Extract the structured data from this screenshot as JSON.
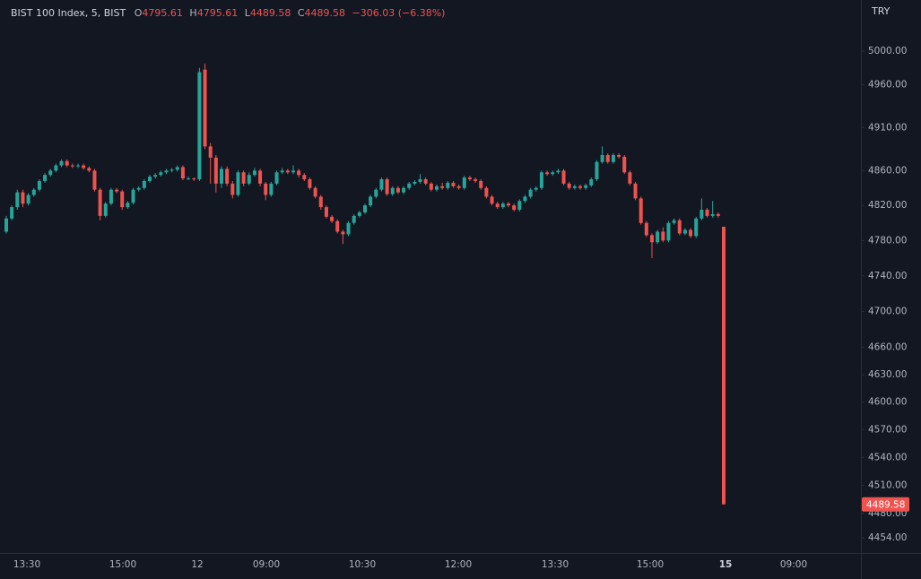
{
  "chart_data": {
    "type": "candlestick",
    "title": "BIST 100 Index, 5, BIST",
    "legend_letters": [
      "O",
      "H",
      "L",
      "C"
    ],
    "change": "−306.03 (−6.38%)",
    "currency": "TRY",
    "up_color": "#26a69a",
    "down_color": "#ef5350",
    "log_scale": true,
    "ylim": [
      4438,
      5061
    ],
    "yticks": [
      {
        "value": 5000,
        "label": "5000.00"
      },
      {
        "value": 4960,
        "label": "4960.00"
      },
      {
        "value": 4910,
        "label": "4910.00"
      },
      {
        "value": 4860,
        "label": "4860.00"
      },
      {
        "value": 4820,
        "label": "4820.00"
      },
      {
        "value": 4780,
        "label": "4780.00"
      },
      {
        "value": 4740,
        "label": "4740.00"
      },
      {
        "value": 4700,
        "label": "4700.00"
      },
      {
        "value": 4660,
        "label": "4660.00"
      },
      {
        "value": 4630,
        "label": "4630.00"
      },
      {
        "value": 4600,
        "label": "4600.00"
      },
      {
        "value": 4570,
        "label": "4570.00"
      },
      {
        "value": 4540,
        "label": "4540.00"
      },
      {
        "value": 4510,
        "label": "4510.00"
      },
      {
        "value": 4480,
        "label": "4480.00"
      },
      {
        "value": 4454,
        "label": "4454.00"
      }
    ],
    "xtick_labels": [
      "13:30",
      "15:00",
      "12",
      "09:00",
      "10:30",
      "12:00",
      "13:30",
      "15:00",
      "15",
      "09:00"
    ],
    "ohlc": [
      [
        4790,
        4808,
        4788,
        4805
      ],
      [
        4805,
        4820,
        4803,
        4818
      ],
      [
        4818,
        4838,
        4815,
        4835
      ],
      [
        4835,
        4838,
        4818,
        4822
      ],
      [
        4822,
        4834,
        4820,
        4832
      ],
      [
        4832,
        4840,
        4830,
        4838
      ],
      [
        4838,
        4850,
        4836,
        4848
      ],
      [
        4848,
        4857,
        4846,
        4855
      ],
      [
        4855,
        4862,
        4853,
        4860
      ],
      [
        4860,
        4868,
        4858,
        4866
      ],
      [
        4866,
        4873,
        4864,
        4871
      ],
      [
        4871,
        4873,
        4864,
        4866
      ],
      [
        4866,
        4868,
        4863,
        4865
      ],
      [
        4865,
        4868,
        4863,
        4866
      ],
      [
        4866,
        4868,
        4861,
        4863
      ],
      [
        4863,
        4865,
        4858,
        4860
      ],
      [
        4860,
        4862,
        4836,
        4838
      ],
      [
        4838,
        4840,
        4803,
        4808
      ],
      [
        4808,
        4824,
        4806,
        4822
      ],
      [
        4822,
        4840,
        4820,
        4838
      ],
      [
        4838,
        4840,
        4834,
        4836
      ],
      [
        4836,
        4838,
        4815,
        4818
      ],
      [
        4818,
        4825,
        4816,
        4823
      ],
      [
        4823,
        4840,
        4821,
        4838
      ],
      [
        4838,
        4842,
        4836,
        4840
      ],
      [
        4840,
        4850,
        4838,
        4848
      ],
      [
        4848,
        4855,
        4846,
        4853
      ],
      [
        4853,
        4857,
        4851,
        4855
      ],
      [
        4855,
        4860,
        4853,
        4858
      ],
      [
        4858,
        4862,
        4856,
        4860
      ],
      [
        4860,
        4863,
        4858,
        4861
      ],
      [
        4861,
        4866,
        4859,
        4864
      ],
      [
        4864,
        4866,
        4849,
        4851
      ],
      [
        4851,
        4853,
        4849,
        4851
      ],
      [
        4851,
        4852,
        4848,
        4850
      ],
      [
        4850,
        4980,
        4848,
        4975
      ],
      [
        4978,
        4985,
        4885,
        4888
      ],
      [
        4888,
        4892,
        4845,
        4875
      ],
      [
        4875,
        4878,
        4835,
        4845
      ],
      [
        4845,
        4865,
        4840,
        4862
      ],
      [
        4862,
        4865,
        4842,
        4845
      ],
      [
        4845,
        4848,
        4828,
        4832
      ],
      [
        4832,
        4860,
        4830,
        4858
      ],
      [
        4858,
        4860,
        4842,
        4845
      ],
      [
        4845,
        4858,
        4843,
        4855
      ],
      [
        4855,
        4863,
        4853,
        4860
      ],
      [
        4860,
        4862,
        4842,
        4845
      ],
      [
        4845,
        4847,
        4826,
        4832
      ],
      [
        4832,
        4847,
        4830,
        4845
      ],
      [
        4845,
        4860,
        4843,
        4858
      ],
      [
        4858,
        4863,
        4856,
        4860
      ],
      [
        4860,
        4862,
        4856,
        4858
      ],
      [
        4858,
        4866,
        4856,
        4860
      ],
      [
        4860,
        4862,
        4852,
        4855
      ],
      [
        4855,
        4857,
        4848,
        4850
      ],
      [
        4850,
        4852,
        4838,
        4840
      ],
      [
        4840,
        4842,
        4828,
        4830
      ],
      [
        4830,
        4832,
        4815,
        4818
      ],
      [
        4818,
        4820,
        4805,
        4807
      ],
      [
        4807,
        4809,
        4800,
        4802
      ],
      [
        4802,
        4804,
        4788,
        4790
      ],
      [
        4790,
        4792,
        4776,
        4787
      ],
      [
        4787,
        4802,
        4785,
        4800
      ],
      [
        4800,
        4810,
        4798,
        4808
      ],
      [
        4808,
        4814,
        4806,
        4812
      ],
      [
        4812,
        4822,
        4810,
        4820
      ],
      [
        4820,
        4832,
        4818,
        4830
      ],
      [
        4830,
        4840,
        4828,
        4838
      ],
      [
        4838,
        4852,
        4836,
        4850
      ],
      [
        4850,
        4852,
        4831,
        4833
      ],
      [
        4833,
        4842,
        4831,
        4840
      ],
      [
        4840,
        4842,
        4833,
        4835
      ],
      [
        4835,
        4842,
        4833,
        4840
      ],
      [
        4840,
        4847,
        4838,
        4845
      ],
      [
        4845,
        4849,
        4843,
        4847
      ],
      [
        4847,
        4856,
        4845,
        4850
      ],
      [
        4850,
        4852,
        4843,
        4845
      ],
      [
        4845,
        4847,
        4836,
        4838
      ],
      [
        4838,
        4844,
        4836,
        4842
      ],
      [
        4842,
        4846,
        4838,
        4840
      ],
      [
        4840,
        4848,
        4838,
        4846
      ],
      [
        4846,
        4848,
        4840,
        4842
      ],
      [
        4842,
        4844,
        4838,
        4840
      ],
      [
        4840,
        4854,
        4838,
        4852
      ],
      [
        4852,
        4854,
        4848,
        4850
      ],
      [
        4850,
        4852,
        4846,
        4848
      ],
      [
        4848,
        4850,
        4838,
        4840
      ],
      [
        4840,
        4842,
        4828,
        4830
      ],
      [
        4830,
        4832,
        4820,
        4822
      ],
      [
        4822,
        4824,
        4816,
        4818
      ],
      [
        4818,
        4824,
        4816,
        4822
      ],
      [
        4822,
        4824,
        4818,
        4820
      ],
      [
        4820,
        4822,
        4813,
        4815
      ],
      [
        4815,
        4827,
        4813,
        4825
      ],
      [
        4825,
        4832,
        4823,
        4830
      ],
      [
        4830,
        4840,
        4828,
        4838
      ],
      [
        4838,
        4842,
        4836,
        4840
      ],
      [
        4840,
        4860,
        4838,
        4858
      ],
      [
        4858,
        4860,
        4854,
        4856
      ],
      [
        4856,
        4860,
        4854,
        4858
      ],
      [
        4858,
        4862,
        4856,
        4860
      ],
      [
        4860,
        4862,
        4843,
        4845
      ],
      [
        4845,
        4847,
        4838,
        4840
      ],
      [
        4840,
        4844,
        4838,
        4842
      ],
      [
        4842,
        4844,
        4838,
        4840
      ],
      [
        4840,
        4845,
        4838,
        4843
      ],
      [
        4843,
        4852,
        4841,
        4850
      ],
      [
        4850,
        4872,
        4848,
        4870
      ],
      [
        4870,
        4888,
        4868,
        4878
      ],
      [
        4878,
        4880,
        4868,
        4870
      ],
      [
        4870,
        4880,
        4868,
        4878
      ],
      [
        4878,
        4880,
        4874,
        4876
      ],
      [
        4876,
        4878,
        4856,
        4858
      ],
      [
        4858,
        4860,
        4843,
        4845
      ],
      [
        4845,
        4847,
        4826,
        4828
      ],
      [
        4828,
        4830,
        4798,
        4800
      ],
      [
        4800,
        4802,
        4784,
        4786
      ],
      [
        4786,
        4788,
        4760,
        4778
      ],
      [
        4778,
        4792,
        4776,
        4790
      ],
      [
        4790,
        4795,
        4778,
        4780
      ],
      [
        4780,
        4802,
        4778,
        4800
      ],
      [
        4800,
        4805,
        4798,
        4803
      ],
      [
        4803,
        4805,
        4786,
        4788
      ],
      [
        4788,
        4794,
        4786,
        4792
      ],
      [
        4792,
        4794,
        4783,
        4785
      ],
      [
        4785,
        4807,
        4783,
        4805
      ],
      [
        4805,
        4828,
        4803,
        4815
      ],
      [
        4815,
        4817,
        4806,
        4808
      ],
      [
        4808,
        4825,
        4806,
        4810
      ],
      [
        4810,
        4812,
        4806,
        4808
      ],
      [
        4795.61,
        4795.61,
        4489.58,
        4489.58
      ]
    ]
  }
}
